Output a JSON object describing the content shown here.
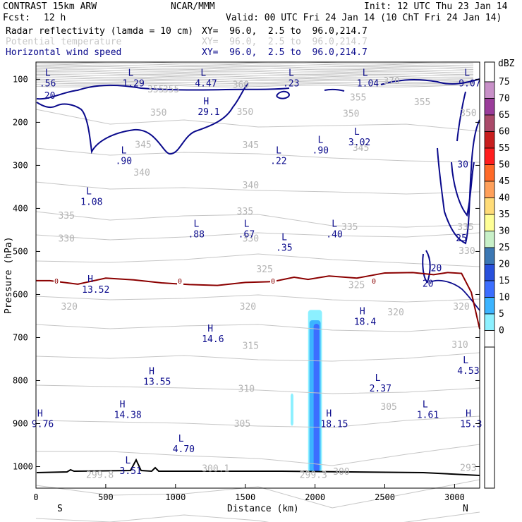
{
  "header": {
    "model": "CONTRAST 15km ARW",
    "source": "NCAR/MMM",
    "init": "Init: 12 UTC Thu 23 Jan 14",
    "fcst_label": "Fcst:",
    "fcst_value": "12 h",
    "valid": "Valid: 00 UTC Fri 24 Jan 14 (10 ChT Fri 24 Jan 14)",
    "fields": [
      {
        "name": "Radar reflectivity (lamda = 10 cm)",
        "xy": "XY=  96.0,  2.5 to  96.0,214.7",
        "color": "#000000"
      },
      {
        "name": "Potential temperature",
        "xy": "XY=  96.0,  2.5 to  96.0,214.7",
        "color": "#c8c8c8"
      },
      {
        "name": "Horizontal wind speed",
        "xy": "XY=  96.0,  2.5 to  96.0,214.7",
        "color": "#0a0a8c"
      }
    ]
  },
  "chart_data": {
    "type": "cross-section",
    "xlabel": "Distance (km)",
    "ylabel": "Pressure (hPa)",
    "x_ticks": [
      0,
      500,
      1000,
      1500,
      2000,
      2500,
      3000
    ],
    "y_ticks": [
      100,
      200,
      300,
      400,
      500,
      600,
      700,
      800,
      900,
      1000
    ],
    "xlim": [
      0,
      3180
    ],
    "ylim": [
      1050,
      60
    ],
    "end_labels": {
      "left": "S",
      "right": "N"
    },
    "colorbar": {
      "unit": "dBZ",
      "levels": [
        "75",
        "70",
        "65",
        "60",
        "55",
        "50",
        "45",
        "40",
        "35",
        "30",
        "25",
        "20",
        "15",
        "10",
        "5",
        "0"
      ],
      "colors": [
        "#c890c8",
        "#9a3c9a",
        "#aa4a6a",
        "#c81e1e",
        "#ff1e1e",
        "#ff6a28",
        "#ffa05a",
        "#ffdc78",
        "#ffff96",
        "#c8f0c8",
        "#3c78b4",
        "#2850dc",
        "#3c6eff",
        "#3cb4ff",
        "#8cf0ff",
        "#ffffff"
      ]
    },
    "theta_labels": [
      {
        "x": 870,
        "p": 122,
        "v": "355"
      },
      {
        "x": 980,
        "p": 122,
        "v": "355"
      },
      {
        "x": 1480,
        "p": 112,
        "v": "360"
      },
      {
        "x": 2560,
        "p": 103,
        "v": "370"
      },
      {
        "x": 2320,
        "p": 141,
        "v": "355"
      },
      {
        "x": 2780,
        "p": 152,
        "v": "355"
      },
      {
        "x": 890,
        "p": 176,
        "v": "350"
      },
      {
        "x": 1510,
        "p": 175,
        "v": "350"
      },
      {
        "x": 2270,
        "p": 179,
        "v": "350"
      },
      {
        "x": 3110,
        "p": 177,
        "v": "350"
      },
      {
        "x": 780,
        "p": 251,
        "v": "345"
      },
      {
        "x": 1550,
        "p": 252,
        "v": "345"
      },
      {
        "x": 2340,
        "p": 258,
        "v": "345"
      },
      {
        "x": 770,
        "p": 316,
        "v": "340"
      },
      {
        "x": 1550,
        "p": 345,
        "v": "340"
      },
      {
        "x": 1510,
        "p": 406,
        "v": "335"
      },
      {
        "x": 230,
        "p": 416,
        "v": "335"
      },
      {
        "x": 2260,
        "p": 442,
        "v": "335"
      },
      {
        "x": 3090,
        "p": 442,
        "v": "335"
      },
      {
        "x": 230,
        "p": 469,
        "v": "330"
      },
      {
        "x": 1550,
        "p": 469,
        "v": "330"
      },
      {
        "x": 3100,
        "p": 498,
        "v": "330"
      },
      {
        "x": 1650,
        "p": 540,
        "v": "325"
      },
      {
        "x": 2310,
        "p": 577,
        "v": "325"
      },
      {
        "x": 250,
        "p": 627,
        "v": "320"
      },
      {
        "x": 1530,
        "p": 627,
        "v": "320"
      },
      {
        "x": 2590,
        "p": 640,
        "v": "320"
      },
      {
        "x": 3060,
        "p": 627,
        "v": "320"
      },
      {
        "x": 1550,
        "p": 718,
        "v": "315"
      },
      {
        "x": 3050,
        "p": 716,
        "v": "310"
      },
      {
        "x": 1520,
        "p": 818,
        "v": "310"
      },
      {
        "x": 2540,
        "p": 860,
        "v": "305"
      },
      {
        "x": 1490,
        "p": 899,
        "v": "305"
      },
      {
        "x": 2200,
        "p": 1011,
        "v": "300"
      },
      {
        "x": 430,
        "p": 1018,
        "v": "299.8"
      },
      {
        "x": 1260,
        "p": 1003,
        "v": "300.1"
      },
      {
        "x": 1960,
        "p": 1018,
        "v": "299.3"
      },
      {
        "x": 3110,
        "p": 1002,
        "v": "293"
      }
    ],
    "wind_labels": [
      {
        "x": 100,
        "p": 137,
        "v": "20"
      },
      {
        "x": 3060,
        "p": 297,
        "v": "30"
      },
      {
        "x": 3050,
        "p": 468,
        "v": "25"
      },
      {
        "x": 2870,
        "p": 538,
        "v": "20"
      },
      {
        "x": 2810,
        "p": 574,
        "v": "20"
      }
    ],
    "freezing_level": {
      "value": "0",
      "x": [
        0,
        100,
        300,
        500,
        700,
        900,
        1100,
        1300,
        1500,
        1700,
        1850,
        1950,
        2100,
        2300,
        2500,
        2700,
        2850,
        2950,
        3050,
        3120,
        3180
      ],
      "p": [
        568,
        568,
        576,
        562,
        566,
        573,
        577,
        579,
        572,
        570,
        560,
        565,
        557,
        562,
        550,
        549,
        554,
        549,
        551,
        595,
        680
      ]
    },
    "radar_echoes": [
      {
        "x": [
          1950,
          2050
        ],
        "p": [
          636,
          1012
        ],
        "dbz": "5"
      },
      {
        "x": [
          1960,
          2040
        ],
        "p": [
          660,
          1012
        ],
        "dbz": "10"
      },
      {
        "x": [
          1990,
          2030
        ],
        "p": [
          668,
          1012
        ],
        "dbz": "15"
      },
      {
        "x": [
          1825,
          1845
        ],
        "p": [
          830,
          905
        ],
        "dbz": "5"
      }
    ],
    "extrema": [
      {
        "type": "L",
        "v": ".56",
        "x": 85,
        "p": 92
      },
      {
        "type": "L",
        "v": "1.29",
        "x": 680,
        "p": 92
      },
      {
        "type": "L",
        "v": "4.47",
        "x": 1200,
        "p": 92
      },
      {
        "type": "L",
        "v": ".23",
        "x": 1830,
        "p": 92
      },
      {
        "type": "L",
        "v": "1.04",
        "x": 2360,
        "p": 92
      },
      {
        "type": "L",
        "v": "9.07",
        "x": 3090,
        "p": 92
      },
      {
        "type": "H",
        "v": "29.1",
        "x": 1220,
        "p": 158
      },
      {
        "type": "L",
        "v": ".90",
        "x": 630,
        "p": 272
      },
      {
        "type": "L",
        "v": ".22",
        "x": 1740,
        "p": 272
      },
      {
        "type": "L",
        "v": ".90",
        "x": 2040,
        "p": 248
      },
      {
        "type": "L",
        "v": "3.02",
        "x": 2300,
        "p": 229
      },
      {
        "type": "L",
        "v": "1.08",
        "x": 380,
        "p": 367
      },
      {
        "type": "L",
        "v": ".88",
        "x": 1150,
        "p": 443
      },
      {
        "type": "L",
        "v": ".67",
        "x": 1510,
        "p": 443
      },
      {
        "type": "L",
        "v": ".35",
        "x": 1780,
        "p": 474
      },
      {
        "type": "L",
        "v": ".40",
        "x": 2140,
        "p": 443
      },
      {
        "type": "H",
        "v": "13.52",
        "x": 390,
        "p": 571
      },
      {
        "type": "H",
        "v": "18.4",
        "x": 2340,
        "p": 646
      },
      {
        "type": "H",
        "v": "14.6",
        "x": 1250,
        "p": 686
      },
      {
        "type": "L",
        "v": "4.53",
        "x": 3080,
        "p": 760
      },
      {
        "type": "L",
        "v": "2.37",
        "x": 2450,
        "p": 801
      },
      {
        "type": "H",
        "v": "13.55",
        "x": 830,
        "p": 785
      },
      {
        "type": "H",
        "v": "14.38",
        "x": 620,
        "p": 862
      },
      {
        "type": "L",
        "v": "1.61",
        "x": 2790,
        "p": 862
      },
      {
        "type": "H",
        "v": "9.76",
        "x": 30,
        "p": 884
      },
      {
        "type": "H",
        "v": "18.15",
        "x": 2100,
        "p": 884
      },
      {
        "type": "H",
        "v": "15.3",
        "x": 3100,
        "p": 884
      },
      {
        "type": "L",
        "v": "4.70",
        "x": 1040,
        "p": 942
      },
      {
        "type": "L",
        "v": "3.51",
        "x": 660,
        "p": 993
      }
    ]
  }
}
